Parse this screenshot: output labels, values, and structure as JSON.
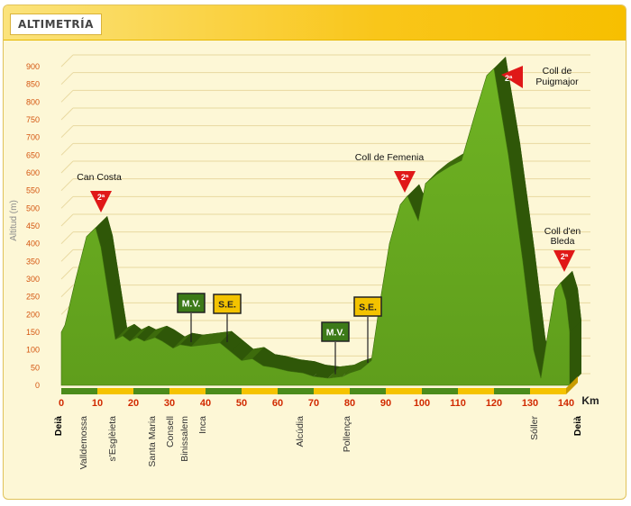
{
  "header": {
    "title": "ALTIMETRÍA"
  },
  "chart_data": {
    "type": "area",
    "xlabel": "Km",
    "ylabel": "Altitud (m)",
    "xlim": [
      0,
      140
    ],
    "ylim": [
      0,
      900
    ],
    "x_ticks": [
      0,
      10,
      20,
      30,
      40,
      50,
      60,
      70,
      80,
      90,
      100,
      110,
      120,
      130,
      140
    ],
    "y_ticks": [
      0,
      50,
      100,
      150,
      200,
      250,
      300,
      350,
      400,
      450,
      500,
      550,
      600,
      650,
      700,
      750,
      800,
      850,
      900
    ],
    "grid": true,
    "profile": [
      {
        "x": 0,
        "y": 150
      },
      {
        "x": 1,
        "y": 170
      },
      {
        "x": 4,
        "y": 300
      },
      {
        "x": 7,
        "y": 420
      },
      {
        "x": 9.5,
        "y": 445
      },
      {
        "x": 11,
        "y": 390
      },
      {
        "x": 13,
        "y": 260
      },
      {
        "x": 15,
        "y": 130
      },
      {
        "x": 17,
        "y": 140
      },
      {
        "x": 19,
        "y": 125
      },
      {
        "x": 21,
        "y": 135
      },
      {
        "x": 23,
        "y": 125
      },
      {
        "x": 26,
        "y": 135
      },
      {
        "x": 28,
        "y": 125
      },
      {
        "x": 31,
        "y": 105
      },
      {
        "x": 33,
        "y": 115
      },
      {
        "x": 36,
        "y": 110
      },
      {
        "x": 40,
        "y": 115
      },
      {
        "x": 44,
        "y": 120
      },
      {
        "x": 47,
        "y": 95
      },
      {
        "x": 50,
        "y": 70
      },
      {
        "x": 53,
        "y": 75
      },
      {
        "x": 56,
        "y": 55
      },
      {
        "x": 59,
        "y": 50
      },
      {
        "x": 63,
        "y": 40
      },
      {
        "x": 67,
        "y": 35
      },
      {
        "x": 70,
        "y": 25
      },
      {
        "x": 74,
        "y": 20
      },
      {
        "x": 78,
        "y": 25
      },
      {
        "x": 80,
        "y": 35
      },
      {
        "x": 83,
        "y": 45
      },
      {
        "x": 86,
        "y": 70
      },
      {
        "x": 88,
        "y": 210
      },
      {
        "x": 91,
        "y": 400
      },
      {
        "x": 94,
        "y": 510
      },
      {
        "x": 96,
        "y": 535
      },
      {
        "x": 99,
        "y": 465
      },
      {
        "x": 101,
        "y": 570
      },
      {
        "x": 104,
        "y": 595
      },
      {
        "x": 108,
        "y": 620
      },
      {
        "x": 111,
        "y": 635
      },
      {
        "x": 115,
        "y": 775
      },
      {
        "x": 118,
        "y": 875
      },
      {
        "x": 120,
        "y": 895
      },
      {
        "x": 124,
        "y": 650
      },
      {
        "x": 128,
        "y": 350
      },
      {
        "x": 131,
        "y": 100
      },
      {
        "x": 133,
        "y": 20
      },
      {
        "x": 135,
        "y": 150
      },
      {
        "x": 137,
        "y": 270
      },
      {
        "x": 138.5,
        "y": 290
      },
      {
        "x": 140,
        "y": 240
      },
      {
        "x": 141,
        "y": 150
      }
    ],
    "climbs": [
      {
        "name": "Can Costa",
        "category": "2ª",
        "km": 10,
        "alt": 445,
        "label_side": "top"
      },
      {
        "name": "Coll de Femenia",
        "category": "2ª",
        "km": 96,
        "alt": 535,
        "label_side": "top"
      },
      {
        "name": "Coll de Puigmajor",
        "category": "2ª",
        "km": 122,
        "alt": 895,
        "label_side": "right"
      },
      {
        "name": "Coll d'en Bleda",
        "category": "2ª",
        "km": 139,
        "alt": 290,
        "label_side": "top"
      }
    ],
    "sprints": [
      {
        "type": "M.V.",
        "km": 35,
        "color": "#3c7a18"
      },
      {
        "type": "S.E.",
        "km": 45,
        "color": "#f3c300"
      },
      {
        "type": "M.V.",
        "km": 75,
        "color": "#3c7a18"
      },
      {
        "type": "S.E.",
        "km": 84,
        "color": "#f3c300"
      }
    ],
    "places": [
      {
        "name": "Deià",
        "km": -1,
        "bold": true
      },
      {
        "name": "Valldemossa",
        "km": 6
      },
      {
        "name": "s'Esglèieta",
        "km": 14
      },
      {
        "name": "Santa Maria",
        "km": 25
      },
      {
        "name": "Consell",
        "km": 30
      },
      {
        "name": "Binissalem",
        "km": 34
      },
      {
        "name": "Inca",
        "km": 39
      },
      {
        "name": "Alcúdia",
        "km": 66
      },
      {
        "name": "Pollença",
        "km": 79
      },
      {
        "name": "Sóller",
        "km": 131
      },
      {
        "name": "Deià",
        "km": 143,
        "bold": true
      }
    ],
    "colors": {
      "fill": "#5f9e1c",
      "fill_dark": "#3d6b0c",
      "side": "#2f5708",
      "grid": "#e8d9a0",
      "tick_x": "#d12a00",
      "tick_y": "#d4550f",
      "climb_marker": "#e01818",
      "axis_band_green": "#4b8c1b",
      "axis_band_yellow": "#f5c300"
    }
  }
}
